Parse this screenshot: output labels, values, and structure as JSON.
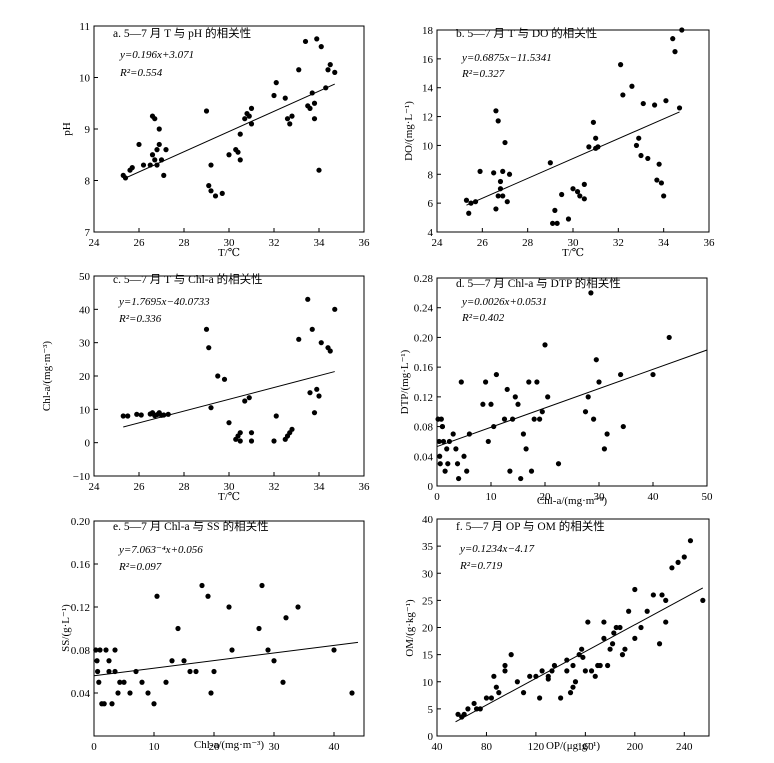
{
  "chart_data": [
    {
      "id": "a",
      "type": "scatter",
      "title": "a. 5—7 月 T 与 pH 的相关性",
      "xlabel": "T/℃",
      "ylabel": "pH",
      "xlim": [
        24,
        36
      ],
      "ylim": [
        7,
        11
      ],
      "xticks": [
        24,
        26,
        28,
        30,
        32,
        34,
        36
      ],
      "yticks": [
        7,
        8,
        9,
        10,
        11
      ],
      "xtick_labels": [
        "24",
        "26",
        "28",
        "30",
        "32",
        "34",
        "36"
      ],
      "ytick_labels": [
        "7",
        "8",
        "9",
        "10",
        "11"
      ],
      "equation": "y=0.196x+3.071",
      "r2": "R²=0.554",
      "fit": {
        "slope": 0.196,
        "intercept": 3.071,
        "x": [
          25.3,
          34.7
        ]
      },
      "x": [
        25.3,
        25.4,
        25.6,
        25.7,
        26.0,
        26.2,
        26.5,
        26.6,
        26.6,
        26.7,
        26.7,
        26.8,
        26.8,
        26.9,
        26.9,
        27.0,
        27.1,
        27.2,
        29.0,
        29.1,
        29.2,
        29.2,
        29.4,
        29.7,
        30.0,
        30.3,
        30.4,
        30.5,
        30.5,
        30.7,
        30.8,
        30.9,
        31.0,
        31.0,
        32.0,
        32.1,
        32.5,
        32.6,
        32.7,
        32.8,
        33.1,
        33.4,
        33.5,
        33.6,
        33.7,
        33.8,
        33.8,
        33.9,
        34.0,
        34.1,
        34.3,
        34.4,
        34.5,
        34.7
      ],
      "y": [
        8.1,
        8.05,
        8.2,
        8.25,
        8.7,
        8.3,
        8.3,
        8.5,
        9.25,
        9.2,
        8.4,
        8.6,
        8.3,
        8.7,
        9.0,
        8.4,
        8.1,
        8.6,
        9.35,
        7.9,
        7.8,
        8.3,
        7.7,
        7.75,
        8.5,
        8.6,
        8.55,
        8.4,
        8.9,
        9.2,
        9.3,
        9.25,
        9.4,
        9.1,
        9.65,
        9.9,
        9.6,
        9.2,
        9.1,
        9.25,
        10.15,
        10.7,
        9.45,
        9.4,
        9.7,
        9.5,
        9.2,
        10.75,
        8.2,
        10.6,
        9.8,
        10.15,
        10.25,
        10.1
      ]
    },
    {
      "id": "b",
      "type": "scatter",
      "title": "b. 5—7 月 T 与 DO 的相关性",
      "xlabel": "T/℃",
      "ylabel": "DO/(mg·L⁻¹)",
      "xlim": [
        24,
        36
      ],
      "ylim": [
        4,
        18
      ],
      "xticks": [
        24,
        26,
        28,
        30,
        32,
        34,
        36
      ],
      "yticks": [
        4,
        6,
        8,
        10,
        12,
        14,
        16,
        18
      ],
      "xtick_labels": [
        "24",
        "26",
        "28",
        "30",
        "32",
        "34",
        "36"
      ],
      "ytick_labels": [
        "4",
        "6",
        "8",
        "10",
        "12",
        "14",
        "16",
        "18"
      ],
      "equation": "y=0.6875x−11.5341",
      "r2": "R²=0.327",
      "fit": {
        "slope": 0.6875,
        "intercept": -11.5341,
        "x": [
          25.3,
          34.7
        ]
      },
      "x": [
        25.3,
        25.4,
        25.5,
        25.7,
        25.9,
        26.5,
        26.6,
        26.6,
        26.7,
        26.7,
        26.8,
        26.8,
        26.9,
        26.9,
        27.0,
        27.1,
        27.2,
        29.0,
        29.1,
        29.2,
        29.3,
        29.5,
        29.8,
        30.0,
        30.2,
        30.3,
        30.5,
        30.5,
        30.7,
        30.9,
        31.0,
        31.0,
        31.1,
        32.1,
        32.2,
        32.6,
        32.8,
        32.9,
        33.0,
        33.1,
        33.3,
        33.6,
        33.7,
        33.8,
        33.9,
        34.0,
        34.1,
        34.4,
        34.5,
        34.7,
        34.8
      ],
      "y": [
        6.2,
        5.3,
        6.0,
        6.1,
        8.2,
        8.1,
        5.6,
        12.4,
        11.7,
        6.5,
        7.0,
        7.5,
        6.5,
        8.2,
        10.2,
        6.1,
        8.0,
        8.8,
        4.6,
        5.5,
        4.6,
        6.6,
        4.9,
        7.0,
        6.8,
        6.5,
        7.3,
        6.3,
        9.9,
        11.6,
        10.5,
        9.8,
        9.9,
        15.6,
        13.5,
        14.1,
        10.0,
        10.5,
        9.3,
        12.9,
        9.1,
        12.8,
        7.6,
        8.7,
        7.4,
        6.5,
        13.1,
        17.4,
        16.5,
        12.6,
        18.0
      ]
    },
    {
      "id": "c",
      "type": "scatter",
      "title": "c. 5—7 月 T 与 Chl-a 的相关性",
      "xlabel": "T/℃",
      "ylabel": "Chl-a/(mg·m⁻³)",
      "xlim": [
        24,
        36
      ],
      "ylim": [
        -10,
        50
      ],
      "xticks": [
        24,
        26,
        28,
        30,
        32,
        34,
        36
      ],
      "yticks": [
        -10,
        0,
        10,
        20,
        30,
        40,
        50
      ],
      "xtick_labels": [
        "24",
        "26",
        "28",
        "30",
        "32",
        "34",
        "36"
      ],
      "ytick_labels": [
        "−10",
        "0",
        "10",
        "20",
        "30",
        "40",
        "50"
      ],
      "equation": "y=1.7695x−40.0733",
      "r2": "R²=0.336",
      "fit": {
        "slope": 1.7695,
        "intercept": -40.0733,
        "x": [
          25.3,
          34.7
        ]
      },
      "x": [
        25.3,
        25.5,
        25.9,
        26.1,
        26.5,
        26.6,
        26.7,
        26.8,
        26.9,
        27.0,
        27.1,
        27.3,
        29.0,
        29.1,
        29.2,
        29.5,
        29.8,
        30.0,
        30.3,
        30.4,
        30.5,
        30.5,
        30.7,
        30.9,
        31.0,
        31.0,
        32.0,
        32.1,
        32.5,
        32.6,
        32.7,
        32.8,
        33.1,
        33.5,
        33.6,
        33.7,
        33.8,
        33.9,
        34.0,
        34.1,
        34.4,
        34.5,
        34.7
      ],
      "y": [
        8,
        8,
        8.5,
        8.3,
        8.6,
        9,
        8.1,
        8.4,
        9,
        8.2,
        8.3,
        8.5,
        34,
        28.5,
        10.5,
        20,
        19,
        6,
        1,
        2,
        3,
        0.5,
        12.5,
        13.5,
        3,
        0.5,
        0.5,
        8,
        1,
        2,
        3,
        4,
        31,
        43,
        15,
        34,
        9,
        16,
        14,
        30,
        28.5,
        27.5,
        40
      ]
    },
    {
      "id": "d",
      "type": "scatter",
      "title": "d. 5—7 月 Chl-a 与 DTP 的相关性",
      "xlabel": "Chl-a/(mg·m⁻³)",
      "ylabel": "DTP/(mg·L⁻¹)",
      "xlim": [
        0,
        50
      ],
      "ylim": [
        0,
        0.28
      ],
      "xticks": [
        0,
        10,
        20,
        30,
        40,
        50
      ],
      "yticks": [
        0,
        0.04,
        0.08,
        0.12,
        0.16,
        0.2,
        0.24,
        0.28
      ],
      "xtick_labels": [
        "0",
        "10",
        "20",
        "30",
        "40",
        "50"
      ],
      "ytick_labels": [
        "0",
        "0.04",
        "0.08",
        "0.12",
        "0.16",
        "0.20",
        "0.24",
        "0.28"
      ],
      "equation": "y=0.0026x+0.0531",
      "r2": "R²=0.402",
      "fit": {
        "slope": 0.0026,
        "intercept": 0.0531,
        "x": [
          0,
          50
        ]
      },
      "x": [
        0.2,
        0.4,
        0.6,
        0.8,
        1.0,
        1.2,
        1.5,
        1.8,
        2.0,
        2.3,
        0.5,
        1.0,
        3.0,
        3.5,
        3.8,
        4.0,
        4.5,
        5.0,
        5.5,
        6.0,
        8.5,
        9.0,
        9.5,
        10.0,
        10.5,
        11.0,
        12.5,
        13.0,
        13.5,
        14.0,
        14.5,
        15.0,
        15.5,
        16.0,
        16.5,
        17.0,
        17.5,
        18.0,
        18.5,
        19.0,
        19.5,
        20.0,
        20.5,
        22.5,
        27.5,
        28.0,
        28.5,
        29.0,
        29.5,
        30.0,
        31.0,
        31.5,
        34.0,
        34.5,
        40.0,
        43.0
      ],
      "y": [
        0.09,
        0.06,
        0.03,
        0.09,
        0.08,
        0.06,
        0.02,
        0.05,
        0.03,
        0.06,
        0.04,
        0.08,
        0.07,
        0.05,
        0.03,
        0.01,
        0.14,
        0.04,
        0.02,
        0.07,
        0.11,
        0.14,
        0.06,
        0.11,
        0.08,
        0.15,
        0.09,
        0.13,
        0.02,
        0.09,
        0.12,
        0.11,
        0.01,
        0.07,
        0.05,
        0.14,
        0.02,
        0.09,
        0.14,
        0.09,
        0.1,
        0.19,
        0.12,
        0.03,
        0.1,
        0.12,
        0.26,
        0.09,
        0.17,
        0.14,
        0.05,
        0.07,
        0.15,
        0.08,
        0.15,
        0.2
      ]
    },
    {
      "id": "e",
      "type": "scatter",
      "title": "e. 5—7 月 Chl-a 与 SS 的相关性",
      "xlabel": "Chl-a/(mg·m⁻³)",
      "ylabel": "SS/(g·L⁻¹)",
      "xlim": [
        0,
        45
      ],
      "ylim": [
        0.0,
        0.2
      ],
      "xticks": [
        0,
        10,
        20,
        30,
        40
      ],
      "yticks": [
        0.0,
        0.04,
        0.08,
        0.12,
        0.16,
        0.2
      ],
      "xtick_labels": [
        "0",
        "10",
        "20",
        "30",
        "40"
      ],
      "ytick_labels": [
        "",
        "0.04",
        "0.08",
        "0.12",
        "0.16",
        "0.20"
      ],
      "equation": "y=7.063⁻⁴x+0.056",
      "r2": "R²=0.097",
      "fit": {
        "slope": 0.0007063,
        "intercept": 0.056,
        "x": [
          0,
          44
        ]
      },
      "x": [
        0.3,
        0.6,
        1.0,
        1.3,
        0.5,
        0.8,
        1.7,
        2.0,
        2.5,
        3.0,
        3.5,
        4.0,
        4.3,
        2.5,
        3.5,
        5.0,
        6.0,
        7.0,
        8.0,
        9.0,
        10.0,
        10.5,
        12.0,
        13.0,
        14.0,
        15.0,
        16.0,
        17.0,
        18.0,
        19.0,
        19.5,
        20.0,
        22.5,
        23.0,
        27.5,
        28.0,
        29.0,
        30.0,
        31.5,
        32.0,
        34.0,
        40.0,
        43.0
      ],
      "y": [
        0.08,
        0.06,
        0.08,
        0.03,
        0.07,
        0.05,
        0.03,
        0.08,
        0.06,
        0.03,
        0.06,
        0.04,
        0.05,
        0.07,
        0.08,
        0.05,
        0.04,
        0.06,
        0.05,
        0.04,
        0.03,
        0.13,
        0.05,
        0.07,
        0.1,
        0.07,
        0.06,
        0.06,
        0.14,
        0.13,
        0.04,
        0.06,
        0.12,
        0.08,
        0.1,
        0.14,
        0.08,
        0.07,
        0.05,
        0.11,
        0.12,
        0.08,
        0.04
      ]
    },
    {
      "id": "f",
      "type": "scatter",
      "title": "f. 5—7 月 OP 与 OM 的相关性",
      "xlabel": "OP/(μg·g⁻¹)",
      "ylabel": "OM/(g·kg⁻¹)",
      "xlim": [
        40,
        260
      ],
      "ylim": [
        0,
        40
      ],
      "xticks": [
        40,
        80,
        120,
        160,
        200,
        240
      ],
      "yticks": [
        0,
        5,
        10,
        15,
        20,
        25,
        30,
        35,
        40
      ],
      "xtick_labels": [
        "40",
        "80",
        "120",
        "160",
        "200",
        "240"
      ],
      "ytick_labels": [
        "0",
        "5",
        "10",
        "15",
        "20",
        "25",
        "30",
        "35",
        "40"
      ],
      "equation": "y=0.1234x−4.17",
      "r2": "R²=0.719",
      "fit": {
        "slope": 0.1234,
        "intercept": -4.17,
        "x": [
          55,
          255
        ]
      },
      "x": [
        57,
        62,
        65,
        72,
        75,
        80,
        84,
        86,
        88,
        90,
        95,
        100,
        105,
        110,
        115,
        120,
        123,
        125,
        130,
        133,
        135,
        140,
        145,
        148,
        150,
        152,
        155,
        157,
        160,
        162,
        165,
        168,
        170,
        172,
        175,
        178,
        180,
        182,
        185,
        188,
        190,
        192,
        195,
        200,
        205,
        210,
        215,
        220,
        222,
        225,
        230,
        235,
        240,
        245,
        255,
        60,
        70,
        95,
        130,
        145,
        150,
        158,
        175,
        183,
        200,
        225
      ],
      "y": [
        4,
        4,
        5,
        5,
        5,
        7,
        7,
        11,
        9,
        8,
        12,
        15,
        10,
        8,
        11,
        11,
        7,
        12,
        11,
        12,
        13,
        7,
        12,
        8,
        13,
        10,
        15,
        16,
        12,
        21,
        12,
        11,
        13,
        13,
        21,
        13,
        16,
        17,
        20,
        20,
        15,
        16,
        23,
        18,
        20,
        23,
        26,
        17,
        26,
        25,
        31,
        32,
        33,
        36,
        25,
        3.5,
        6,
        13,
        10.5,
        14,
        9,
        14.5,
        18,
        19,
        27,
        21
      ]
    }
  ]
}
